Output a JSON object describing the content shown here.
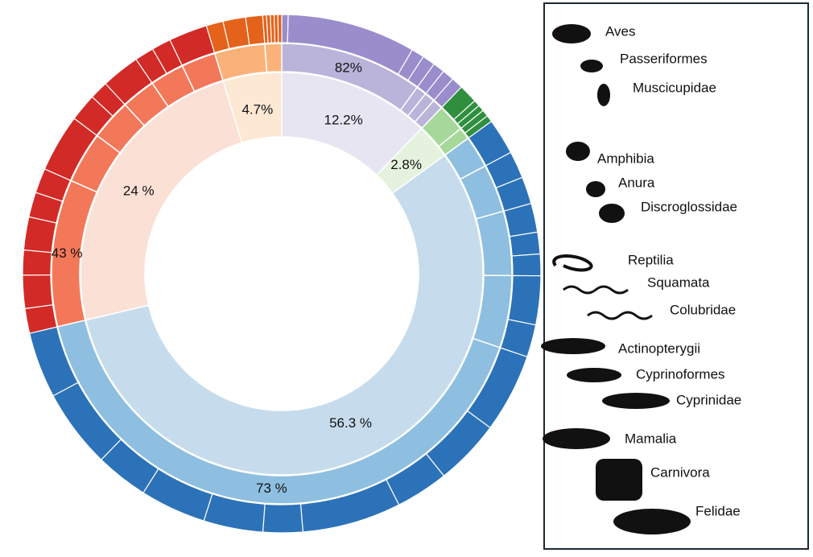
{
  "chart_data": {
    "type": "sunburst",
    "classes": [
      {
        "value": 12.2,
        "value_label": "12.2%",
        "color": "#e8e5f2",
        "order_color": "#bab3da",
        "family_color": "#9a8dcb",
        "orders": [
          {
            "value": 82,
            "value_label": "82%",
            "families": [
              4,
              80,
              8,
              8
            ]
          },
          {
            "value": 6,
            "families": [
              100
            ]
          },
          {
            "value": 6,
            "families": [
              100
            ]
          },
          {
            "value": 6,
            "families": [
              100
            ]
          }
        ]
      },
      {
        "value": 2.8,
        "value_label": "2.8%",
        "color": "#e4f2de",
        "order_color": "#a6d89a",
        "family_color": "#2f8f3f",
        "orders": [
          {
            "value": 70,
            "families": [
              60,
              20,
              20
            ]
          },
          {
            "value": 30,
            "families": [
              50,
              50
            ]
          }
        ]
      },
      {
        "value": 56.3,
        "value_label": "56.3 %",
        "color": "#c6dcec",
        "order_color": "#8ebfe0",
        "family_color": "#2c72b8",
        "orders": [
          {
            "value": 4,
            "families": [
              100
            ]
          },
          {
            "value": 6,
            "families": [
              50,
              50
            ]
          },
          {
            "value": 8,
            "families": [
              40,
              30,
              30
            ]
          },
          {
            "value": 9,
            "families": [
              60,
              40
            ]
          },
          {
            "value": 73,
            "value_label": "73 %",
            "families": [
              12,
              10,
              8,
              15,
              6,
              9,
              10,
              8,
              12,
              10
            ]
          }
        ]
      },
      {
        "value": 24,
        "value_label": "24 %",
        "color": "#fbe0d5",
        "order_color": "#f37859",
        "family_color": "#d22a26",
        "orders": [
          {
            "value": 43,
            "value_label": "43 %",
            "families": [
              15,
              20,
              15,
              20,
              15,
              15
            ]
          },
          {
            "value": 15,
            "families": [
              100
            ]
          },
          {
            "value": 12,
            "families": [
              60,
              40
            ]
          },
          {
            "value": 10,
            "families": [
              100
            ]
          },
          {
            "value": 10,
            "families": [
              50,
              50
            ]
          },
          {
            "value": 10,
            "families": [
              100
            ]
          }
        ]
      },
      {
        "value": 4.7,
        "value_label": "4.7%",
        "color": "#fde8d4",
        "order_color": "#fbb27a",
        "family_color": "#e4621b",
        "orders": [
          {
            "value": 75,
            "families": [
              30,
              40,
              30
            ]
          },
          {
            "value": 25,
            "families": [
              20,
              20,
              20,
              20,
              20
            ]
          }
        ]
      }
    ],
    "legend": [
      "Aves",
      "Passeriformes",
      "Muscicupidae",
      "Amphibia",
      "Anura",
      "Discroglossidae",
      "Reptilia",
      "Squamata",
      "Colubridae",
      "Actinopterygii",
      "Cyprinoformes",
      "Cyprinidae",
      "Mamalia",
      "Carnivora",
      "Felidae"
    ]
  }
}
